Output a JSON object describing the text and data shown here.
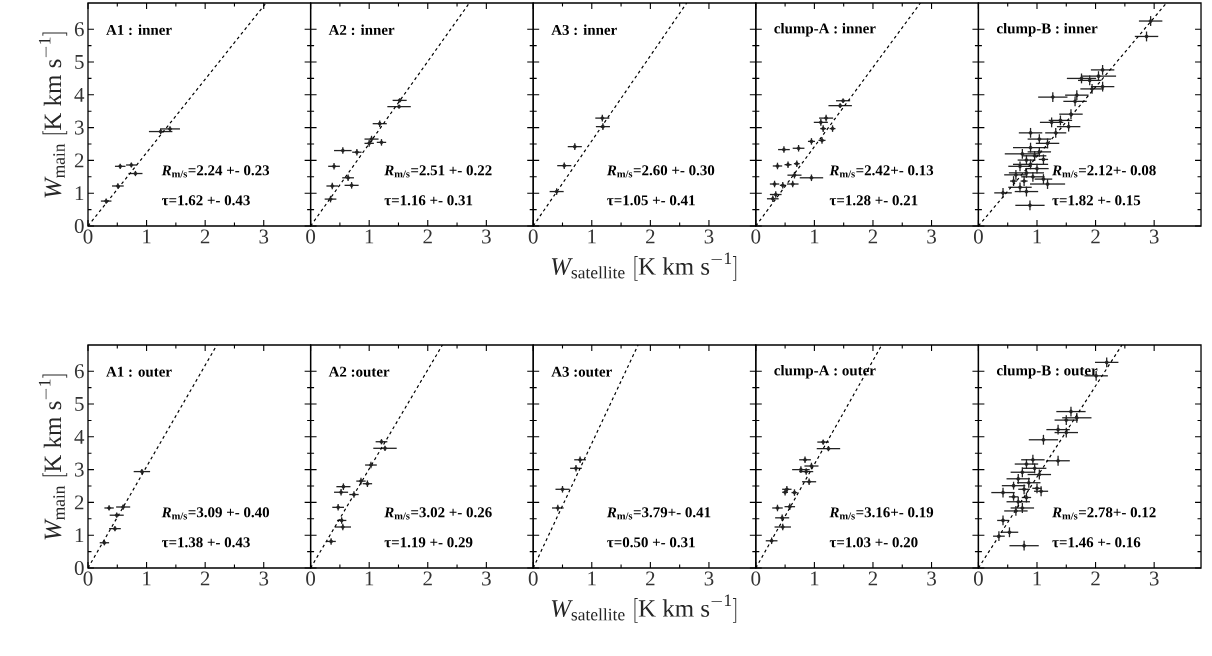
{
  "chart_data": [
    {
      "type": "scatter",
      "xlim": [
        0,
        3.8
      ],
      "ylim": [
        0,
        6.8
      ],
      "xticks": [
        0,
        1,
        2,
        3
      ],
      "yticks": [
        0,
        1,
        2,
        3,
        4,
        5,
        6
      ],
      "ylabel": "\\mathit{W}_{\\mathrm{main}}\\ [\\mathrm{K\\ km\\ s}^{\\mathrm{-1}}]",
      "annotations": [
        "A1 : inner",
        "*R*$_{m/s}$=2.24 +- 0.23",
        "τ=1.62 +- 0.43"
      ],
      "series": [
        {
          "color": "#222222",
          "marker": "circle",
          "x": [
            0.31,
            0.51,
            0.55,
            0.74,
            0.81,
            1.24,
            1.4
          ],
          "values": [
            0.76,
            1.22,
            1.82,
            1.86,
            1.6,
            2.88,
            2.96
          ],
          "xerrors": [
            0.09,
            0.1,
            0.09,
            0.09,
            0.12,
            0.2,
            0.17
          ],
          "errors": [
            0.08,
            0.08,
            0.08,
            0.08,
            0.08,
            0.08,
            0.08
          ]
        },
        {
          "type": "line",
          "line_style": "dashed",
          "color": "#000000",
          "x": [
            0,
            3.04
          ],
          "values": [
            0,
            6.8
          ]
        }
      ]
    },
    {
      "type": "scatter",
      "xlim": [
        0,
        3.8
      ],
      "ylim": [
        0,
        6.8
      ],
      "xticks": [
        0,
        1,
        2,
        3
      ],
      "yticks": [
        0,
        1,
        2,
        3,
        4,
        5,
        6
      ],
      "tick_labels": "x",
      "annotations": [
        "A2 : inner",
        "*R*$_{m/s}$=2.51 +- 0.22",
        "τ=1.16 +- 0.31"
      ],
      "series": [
        {
          "color": "#222222",
          "marker": "circle",
          "x": [
            0.34,
            0.37,
            0.4,
            0.55,
            0.79,
            0.64,
            0.7,
            1.0,
            1.04,
            1.21,
            1.18,
            1.51,
            1.52
          ],
          "values": [
            0.82,
            1.22,
            1.82,
            2.3,
            2.25,
            1.47,
            1.24,
            2.52,
            2.65,
            2.55,
            3.12,
            3.64,
            3.83
          ],
          "xerrors": [
            0.1,
            0.1,
            0.1,
            0.15,
            0.08,
            0.1,
            0.12,
            0.08,
            0.12,
            0.08,
            0.12,
            0.2,
            0.12
          ],
          "errors": [
            0.1,
            0.1,
            0.1,
            0.1,
            0.1,
            0.1,
            0.1,
            0.1,
            0.1,
            0.1,
            0.1,
            0.06,
            0.06
          ]
        },
        {
          "type": "line",
          "line_style": "dashed",
          "color": "#000000",
          "x": [
            0,
            2.71
          ],
          "values": [
            0,
            6.8
          ]
        }
      ]
    },
    {
      "type": "scatter",
      "xlim": [
        0,
        3.8
      ],
      "ylim": [
        0,
        6.8
      ],
      "xticks": [
        0,
        1,
        2,
        3
      ],
      "yticks": [
        0,
        1,
        2,
        3,
        4,
        5,
        6
      ],
      "tick_labels": "x",
      "xlabel": "\\mathit{W}_{\\mathrm{satellite}}\\ [\\mathrm{K\\ km\\ s}^{\\mathrm{-1}}]",
      "annotations": [
        "A3 : inner",
        "*R*$_{m/s}$=2.60 +- 0.30",
        "τ=1.05 +- 0.41"
      ],
      "series": [
        {
          "color": "#222222",
          "marker": "circle",
          "x": [
            0.4,
            0.53,
            0.71,
            1.18,
            1.19
          ],
          "values": [
            1.05,
            1.84,
            2.42,
            3.29,
            3.03
          ],
          "xerrors": [
            0.12,
            0.12,
            0.12,
            0.12,
            0.12
          ],
          "errors": [
            0.1,
            0.1,
            0.1,
            0.1,
            0.1
          ]
        },
        {
          "type": "line",
          "line_style": "dashed",
          "color": "#000000",
          "x": [
            0,
            2.62
          ],
          "values": [
            0,
            6.8
          ]
        }
      ]
    },
    {
      "type": "scatter",
      "xlim": [
        0,
        3.8
      ],
      "ylim": [
        0,
        6.8
      ],
      "xticks": [
        0,
        1,
        2,
        3
      ],
      "yticks": [
        0,
        1,
        2,
        3,
        4,
        5,
        6
      ],
      "tick_labels": "x",
      "annotations": [
        "clump-A : inner",
        "*R*$_{m/s}$=2.42+- 0.13",
        "τ=1.28 +- 0.21"
      ],
      "series": [
        {
          "color": "#222222",
          "marker": "circle",
          "x": [
            0.29,
            0.34,
            0.46,
            0.32,
            0.63,
            0.66,
            0.95,
            0.37,
            0.55,
            0.7,
            0.48,
            0.73,
            0.95,
            1.13,
            1.11,
            1.15,
            1.31,
            1.2,
            1.44,
            1.49
          ],
          "values": [
            0.83,
            0.96,
            1.24,
            1.28,
            1.28,
            1.55,
            1.47,
            1.83,
            1.87,
            1.9,
            2.33,
            2.37,
            2.58,
            2.61,
            3.16,
            2.97,
            2.97,
            3.29,
            3.67,
            3.82
          ],
          "xerrors": [
            0.1,
            0.1,
            0.05,
            0.08,
            0.1,
            0.12,
            0.2,
            0.08,
            0.06,
            0.05,
            0.1,
            0.1,
            0.06,
            0.06,
            0.12,
            0.05,
            0.05,
            0.12,
            0.2,
            0.12
          ],
          "errors": [
            0.1,
            0.1,
            0.1,
            0.1,
            0.1,
            0.1,
            0.1,
            0.1,
            0.1,
            0.1,
            0.1,
            0.1,
            0.1,
            0.1,
            0.1,
            0.1,
            0.1,
            0.1,
            0.07,
            0.07
          ]
        },
        {
          "type": "line",
          "line_style": "dashed",
          "color": "#000000",
          "x": [
            0,
            2.81
          ],
          "values": [
            0,
            6.8
          ]
        }
      ]
    },
    {
      "type": "scatter",
      "xlim": [
        0,
        3.8
      ],
      "ylim": [
        0,
        6.8
      ],
      "xticks": [
        0,
        1,
        2,
        3
      ],
      "yticks": [
        0,
        1,
        2,
        3,
        4,
        5,
        6
      ],
      "tick_labels": "x",
      "annotations": [
        "clump-B : inner",
        "*R*$_{m/s}$=2.12+- 0.08",
        "τ=1.82 +- 0.15"
      ],
      "series": [
        {
          "color": "#222222",
          "marker": "circle",
          "x": [
            2.94,
            2.87,
            2.12,
            2.05,
            1.76,
            1.9,
            2.12,
            1.94,
            1.68,
            1.27,
            1.65,
            1.58,
            1.4,
            1.25,
            1.54,
            1.32,
            0.89,
            1.04,
            1.18,
            0.89,
            1.04,
            0.75,
            0.96,
            0.82,
            1.11,
            0.89,
            0.71,
            1.0,
            0.82,
            0.64,
            0.93,
            0.78,
            1.11,
            1.18,
            0.6,
            0.71,
            0.42,
            0.88,
            0.82
          ],
          "values": [
            6.25,
            5.78,
            4.76,
            4.57,
            4.5,
            4.44,
            4.25,
            4.18,
            3.99,
            3.93,
            3.8,
            3.41,
            3.22,
            3.16,
            3.03,
            2.84,
            2.84,
            2.65,
            2.52,
            2.39,
            2.26,
            2.2,
            2.14,
            2.01,
            2.03,
            1.88,
            1.82,
            1.75,
            1.62,
            1.56,
            1.5,
            1.37,
            1.43,
            1.28,
            1.37,
            1.18,
            1.01,
            0.63,
            1.05
          ],
          "xerrors": [
            0.2,
            0.2,
            0.2,
            0.3,
            0.25,
            0.2,
            0.2,
            0.2,
            0.2,
            0.25,
            0.2,
            0.2,
            0.2,
            0.2,
            0.2,
            0.18,
            0.2,
            0.2,
            0.2,
            0.3,
            0.2,
            0.3,
            0.2,
            0.15,
            0.08,
            0.3,
            0.2,
            0.2,
            0.3,
            0.2,
            0.2,
            0.06,
            0.15,
            0.3,
            0.06,
            0.2,
            0.15,
            0.25,
            0.2
          ],
          "errors": [
            0.15,
            0.15,
            0.15,
            0.15,
            0.15,
            0.15,
            0.15,
            0.15,
            0.15,
            0.15,
            0.15,
            0.15,
            0.15,
            0.15,
            0.15,
            0.15,
            0.15,
            0.15,
            0.15,
            0.15,
            0.15,
            0.15,
            0.15,
            0.15,
            0.15,
            0.15,
            0.15,
            0.15,
            0.15,
            0.15,
            0.15,
            0.15,
            0.15,
            0.15,
            0.15,
            0.15,
            0.15,
            0.15,
            0.15
          ]
        },
        {
          "type": "line",
          "line_style": "dashed",
          "color": "#000000",
          "x": [
            0,
            3.21
          ],
          "values": [
            0,
            6.8
          ]
        }
      ]
    },
    {
      "type": "scatter",
      "xlim": [
        0,
        3.8
      ],
      "ylim": [
        0,
        6.8
      ],
      "xticks": [
        0,
        1,
        2,
        3
      ],
      "yticks": [
        0,
        1,
        2,
        3,
        4,
        5,
        6
      ],
      "ylabel": "\\mathit{W}_{\\mathrm{main}}\\ [\\mathrm{K\\ km\\ s}^{\\mathrm{-1}}]",
      "annotations": [
        "A1 : outer",
        "*R*$_{m/s}$=3.09 +- 0.40",
        "τ=1.38 +- 0.43"
      ],
      "series": [
        {
          "color": "#222222",
          "marker": "circle",
          "x": [
            0.28,
            0.46,
            0.49,
            0.36,
            0.6,
            0.92
          ],
          "values": [
            0.77,
            1.2,
            1.61,
            1.83,
            1.86,
            2.94
          ],
          "xerrors": [
            0.08,
            0.1,
            0.12,
            0.08,
            0.12,
            0.14
          ],
          "errors": [
            0.08,
            0.08,
            0.08,
            0.08,
            0.08,
            0.08
          ]
        },
        {
          "type": "line",
          "line_style": "dashed",
          "color": "#000000",
          "x": [
            0,
            2.2
          ],
          "values": [
            0,
            6.8
          ]
        }
      ]
    },
    {
      "type": "scatter",
      "xlim": [
        0,
        3.8
      ],
      "ylim": [
        0,
        6.8
      ],
      "xticks": [
        0,
        1,
        2,
        3
      ],
      "yticks": [
        0,
        1,
        2,
        3,
        4,
        5,
        6
      ],
      "tick_labels": "x",
      "annotations": [
        "A2 :outer",
        "*R*$_{m/s}$=3.02 +- 0.26",
        "τ=1.19 +- 0.29"
      ],
      "series": [
        {
          "color": "#222222",
          "marker": "circle",
          "x": [
            0.35,
            0.55,
            0.53,
            0.47,
            0.56,
            0.52,
            0.74,
            0.86,
            0.97,
            1.03,
            1.21,
            1.27
          ],
          "values": [
            0.81,
            1.25,
            1.45,
            1.85,
            2.48,
            2.31,
            2.24,
            2.65,
            2.57,
            3.14,
            3.85,
            3.65
          ],
          "xerrors": [
            0.08,
            0.14,
            0.08,
            0.1,
            0.12,
            0.12,
            0.08,
            0.08,
            0.08,
            0.1,
            0.1,
            0.2
          ],
          "errors": [
            0.1,
            0.1,
            0.1,
            0.1,
            0.1,
            0.1,
            0.1,
            0.1,
            0.1,
            0.1,
            0.08,
            0.08
          ]
        },
        {
          "type": "line",
          "line_style": "dashed",
          "color": "#000000",
          "x": [
            0,
            2.25
          ],
          "values": [
            0,
            6.8
          ]
        }
      ]
    },
    {
      "type": "scatter",
      "xlim": [
        0,
        3.8
      ],
      "ylim": [
        0,
        6.8
      ],
      "xticks": [
        0,
        1,
        2,
        3
      ],
      "yticks": [
        0,
        1,
        2,
        3,
        4,
        5,
        6
      ],
      "tick_labels": "x",
      "xlabel": "\\mathit{W}_{\\mathrm{satellite}}\\ [\\mathrm{K\\ km\\ s}^{\\mathrm{-1}}]",
      "annotations": [
        "A3 :outer",
        "*R*$_{m/s}$=3.79+- 0.41",
        "τ=0.50 +- 0.31"
      ],
      "series": [
        {
          "color": "#222222",
          "marker": "circle",
          "x": [
            0.42,
            0.5,
            0.73,
            0.8
          ],
          "values": [
            1.83,
            2.4,
            3.04,
            3.3
          ],
          "xerrors": [
            0.1,
            0.12,
            0.1,
            0.1
          ],
          "errors": [
            0.1,
            0.1,
            0.1,
            0.1
          ]
        },
        {
          "type": "line",
          "line_style": "dashed",
          "color": "#000000",
          "x": [
            0,
            1.79
          ],
          "values": [
            0,
            6.8
          ]
        }
      ]
    },
    {
      "type": "scatter",
      "xlim": [
        0,
        3.8
      ],
      "ylim": [
        0,
        6.8
      ],
      "xticks": [
        0,
        1,
        2,
        3
      ],
      "yticks": [
        0,
        1,
        2,
        3,
        4,
        5,
        6
      ],
      "tick_labels": "x",
      "annotations": [
        "clump-A : outer",
        "*R*$_{m/s}$=3.16+- 0.19",
        "τ=1.03 +- 0.20"
      ],
      "series": [
        {
          "color": "#222222",
          "marker": "circle",
          "x": [
            0.27,
            0.46,
            0.45,
            0.37,
            0.58,
            0.5,
            0.53,
            0.66,
            0.91,
            0.86,
            0.77,
            0.95,
            0.84,
            1.15,
            1.24
          ],
          "values": [
            0.83,
            1.25,
            1.53,
            1.83,
            1.87,
            2.31,
            2.4,
            2.3,
            2.63,
            2.94,
            3.0,
            3.11,
            3.3,
            3.84,
            3.64
          ],
          "xerrors": [
            0.1,
            0.14,
            0.12,
            0.09,
            0.09,
            0.05,
            0.08,
            0.05,
            0.12,
            0.12,
            0.15,
            0.12,
            0.1,
            0.1,
            0.2
          ],
          "errors": [
            0.1,
            0.1,
            0.1,
            0.1,
            0.1,
            0.1,
            0.1,
            0.1,
            0.1,
            0.1,
            0.1,
            0.1,
            0.1,
            0.08,
            0.08
          ]
        },
        {
          "type": "line",
          "line_style": "dashed",
          "color": "#000000",
          "x": [
            0,
            2.15
          ],
          "values": [
            0,
            6.8
          ]
        }
      ]
    },
    {
      "type": "scatter",
      "xlim": [
        0,
        3.8
      ],
      "ylim": [
        0,
        6.8
      ],
      "xticks": [
        0,
        1,
        2,
        3
      ],
      "yticks": [
        0,
        1,
        2,
        3,
        4,
        5,
        6
      ],
      "tick_labels": "x",
      "annotations": [
        "clump-B : outer",
        "*R*$_{m/s}$=2.78+- 0.12",
        "τ=1.46 +- 0.16"
      ],
      "series": [
        {
          "color": "#222222",
          "marker": "circle",
          "x": [
            2.19,
            2.01,
            1.58,
            1.68,
            1.5,
            1.36,
            1.5,
            1.11,
            1.36,
            0.93,
            0.82,
            0.96,
            0.75,
            1.04,
            0.68,
            0.86,
            0.6,
            0.78,
            1.0,
            1.07,
            0.42,
            0.6,
            0.82,
            0.68,
            0.75,
            0.64,
            0.42,
            0.35,
            0.53,
            0.78
          ],
          "values": [
            6.27,
            5.86,
            4.77,
            4.58,
            4.51,
            4.22,
            4.13,
            3.91,
            3.27,
            3.3,
            3.17,
            3.04,
            2.92,
            2.85,
            2.72,
            2.6,
            2.51,
            2.4,
            2.43,
            2.34,
            2.3,
            2.17,
            2.15,
            2.02,
            1.83,
            1.74,
            1.45,
            0.97,
            1.09,
            0.68
          ],
          "xerrors": [
            0.2,
            0.2,
            0.25,
            0.25,
            0.2,
            0.2,
            0.2,
            0.25,
            0.2,
            0.2,
            0.2,
            0.2,
            0.2,
            0.2,
            0.2,
            0.2,
            0.2,
            0.1,
            0.08,
            0.12,
            0.2,
            0.08,
            0.08,
            0.2,
            0.2,
            0.2,
            0.1,
            0.1,
            0.15,
            0.25
          ],
          "errors": [
            0.15,
            0.15,
            0.15,
            0.15,
            0.15,
            0.15,
            0.15,
            0.15,
            0.15,
            0.15,
            0.15,
            0.15,
            0.15,
            0.15,
            0.15,
            0.15,
            0.12,
            0.15,
            0.15,
            0.15,
            0.15,
            0.12,
            0.15,
            0.15,
            0.15,
            0.15,
            0.15,
            0.15,
            0.15,
            0.15
          ]
        },
        {
          "type": "line",
          "line_style": "dashed",
          "color": "#000000",
          "x": [
            0,
            2.45
          ],
          "values": [
            0,
            6.8
          ]
        }
      ]
    }
  ]
}
